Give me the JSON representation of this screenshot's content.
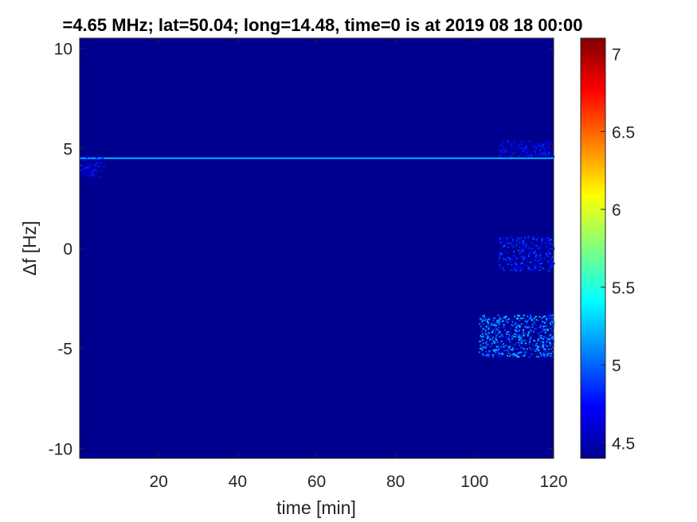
{
  "chart_data": {
    "type": "heatmap",
    "title": "=4.65 MHz;  lat=50.04; long=14.48, time=0 is at 2019 08 18 00:00",
    "xlabel": "time [min]",
    "ylabel": "Δf [Hz]",
    "xlim": [
      0,
      120
    ],
    "ylim": [
      -10.5,
      10.5
    ],
    "x_ticks": [
      20,
      40,
      60,
      80,
      100,
      120
    ],
    "y_ticks": [
      -10,
      -5,
      0,
      5,
      10
    ],
    "y_tick_labels": [
      "-10",
      "-5",
      "0",
      "5",
      "10"
    ],
    "colorbar": {
      "colormap": "jet",
      "range": [
        4.4,
        7.1
      ],
      "ticks": [
        4.5,
        5,
        5.5,
        6,
        6.5,
        7
      ],
      "tick_labels": [
        "4.5",
        "5",
        "5.5",
        "6",
        "6.5",
        "7"
      ]
    },
    "background_level": 4.45,
    "features": [
      {
        "kind": "carrier line",
        "df_hz": 4.5,
        "t_start_min": 0,
        "t_end_min": 120,
        "level": 5.2
      },
      {
        "kind": "patch",
        "t_min": [
          0,
          6
        ],
        "df_hz": [
          3.6,
          4.6
        ],
        "level": 4.8
      },
      {
        "kind": "patch",
        "t_min": [
          106,
          120
        ],
        "df_hz": [
          4.6,
          5.4
        ],
        "level": 4.8
      },
      {
        "kind": "patch",
        "t_min": [
          106,
          120
        ],
        "df_hz": [
          -1.1,
          0.6
        ],
        "level": 4.9
      },
      {
        "kind": "patch",
        "t_min": [
          101,
          120
        ],
        "df_hz": [
          -5.4,
          -3.3
        ],
        "level": 5.2
      }
    ]
  }
}
